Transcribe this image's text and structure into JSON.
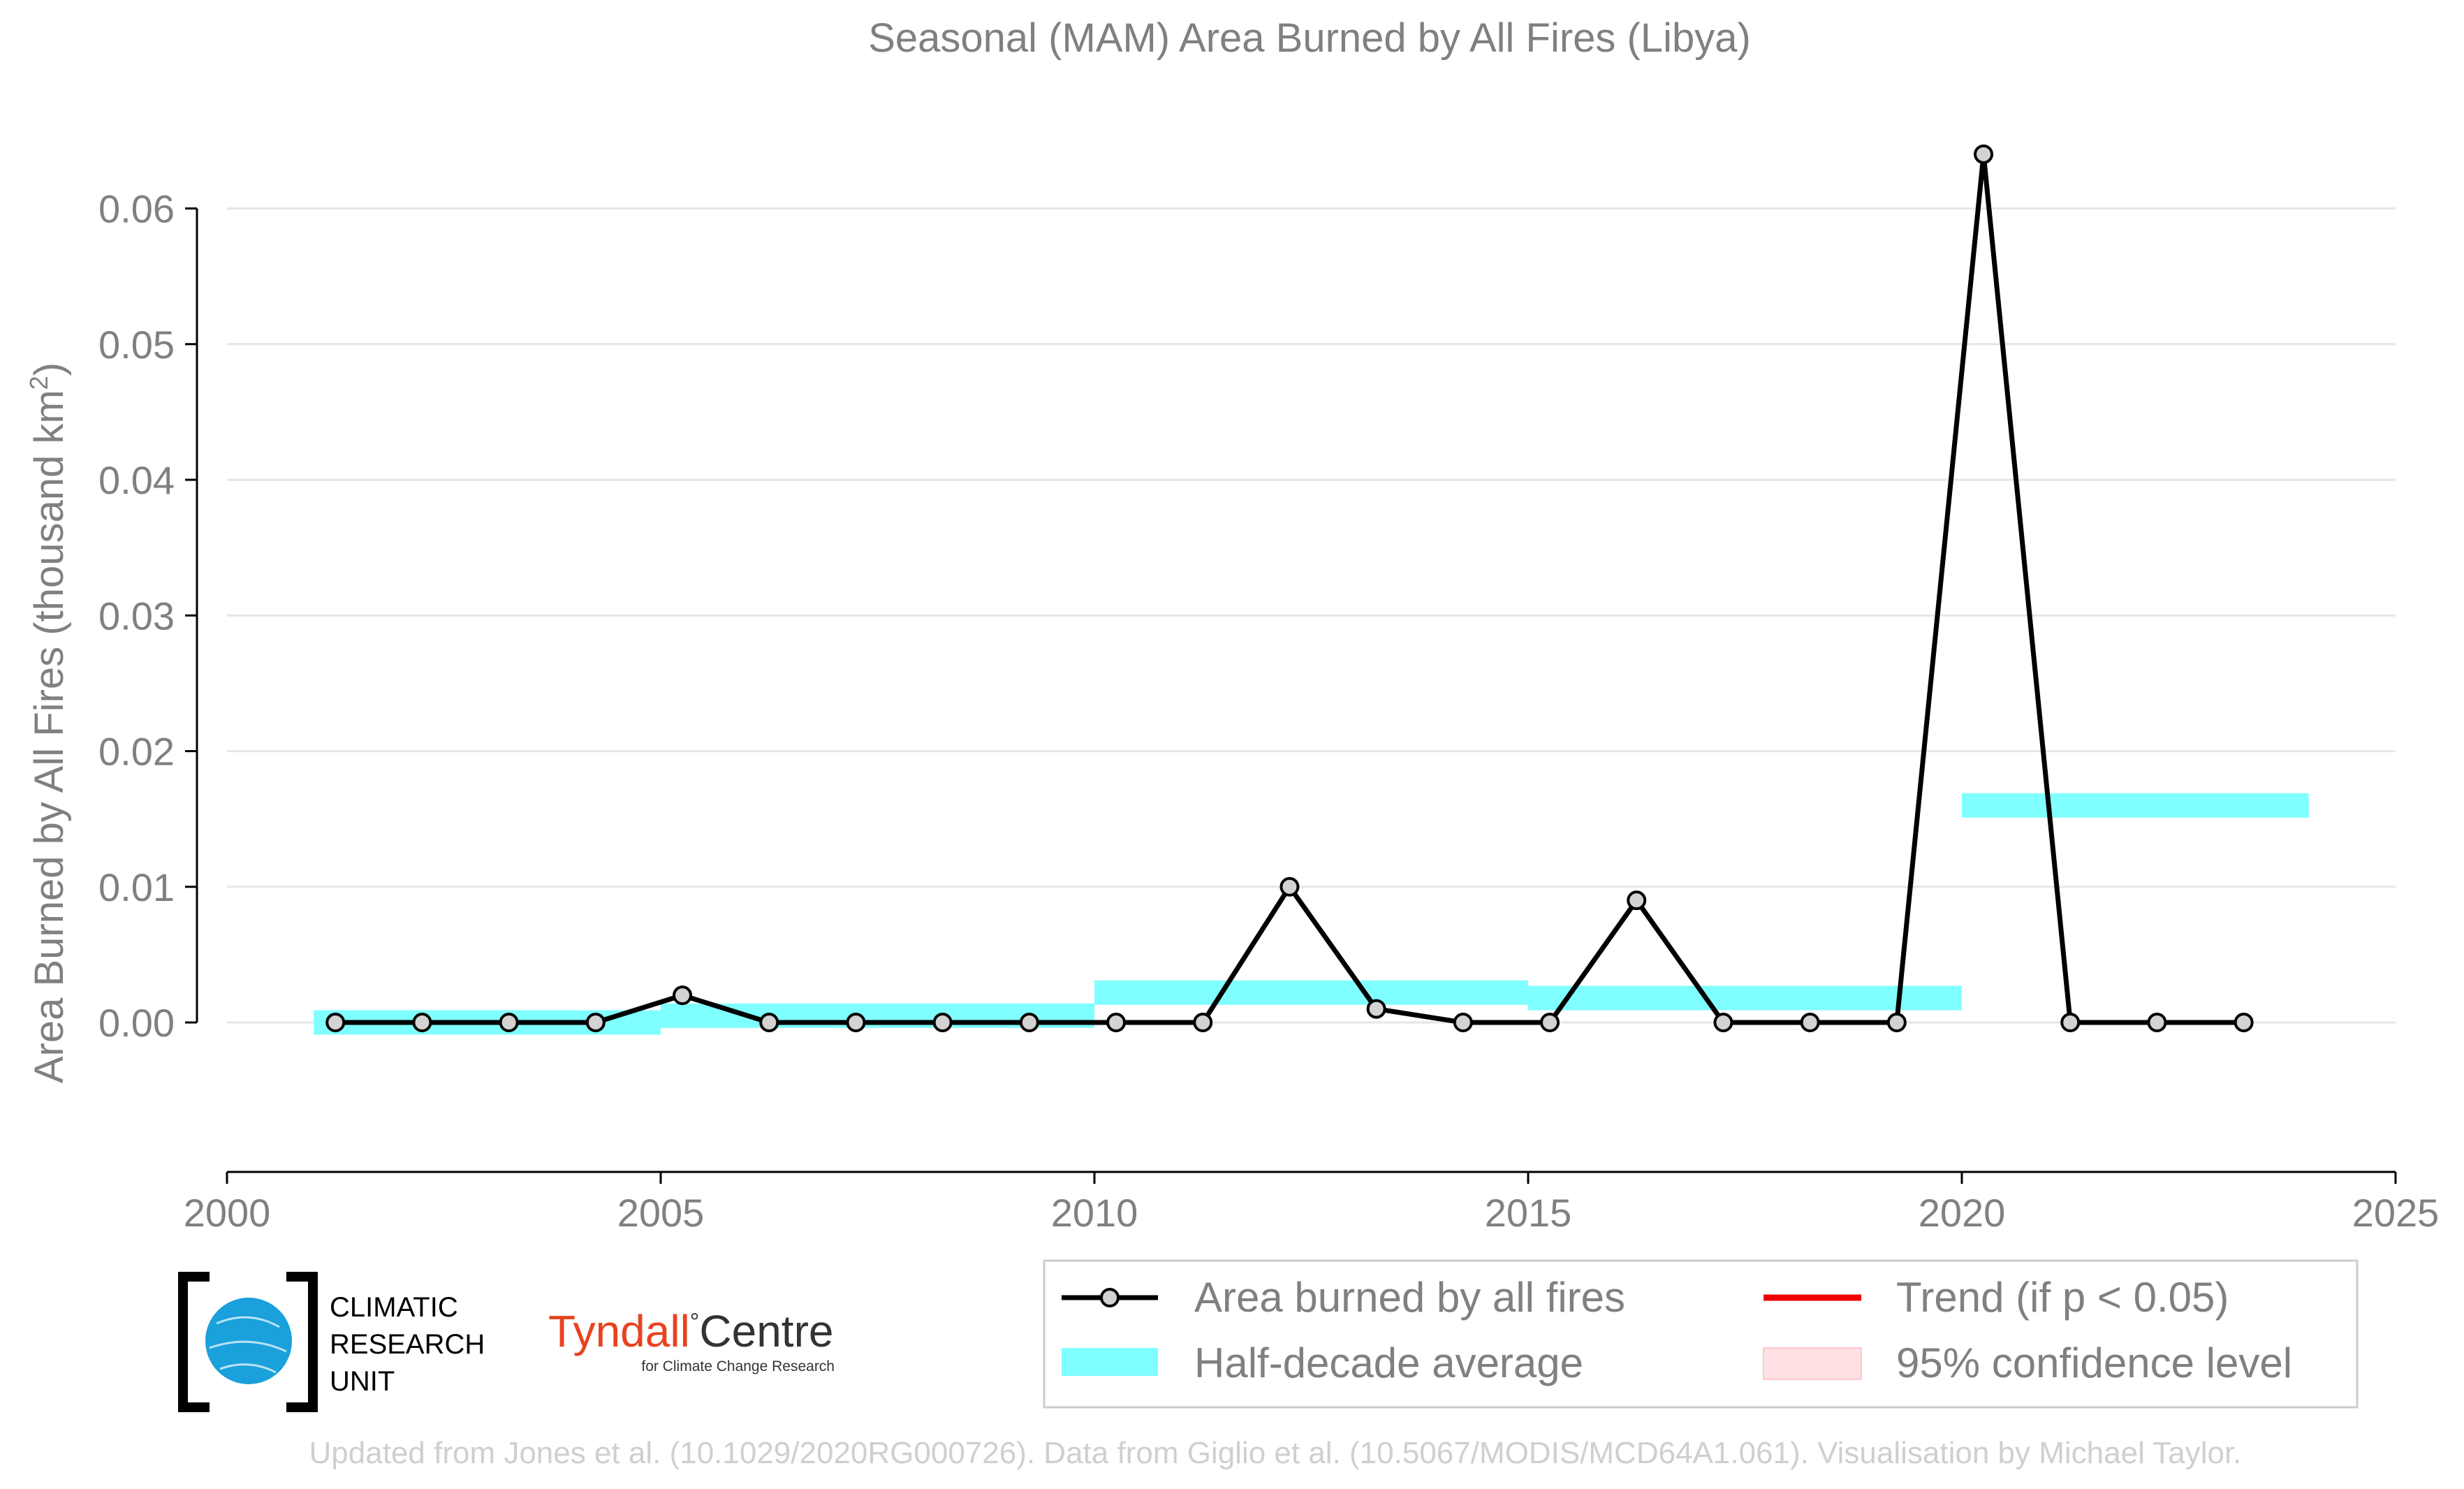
{
  "chart_data": {
    "type": "line",
    "title": "Seasonal (MAM) Area Burned by All Fires (Libya)",
    "ylabel_main": "Area Burned by All Fires (thousand km",
    "ylabel_sup": "2",
    "ylabel_close": ")",
    "xlabel": "",
    "xlim": [
      2000,
      2025
    ],
    "ylim": [
      -0.0052,
      0.0625
    ],
    "x_ticks": [
      2000,
      2005,
      2010,
      2015,
      2020,
      2025
    ],
    "x_tick_labels": [
      "2000",
      "2005",
      "2010",
      "2015",
      "2020",
      "2025"
    ],
    "y_ticks": [
      0.0,
      0.01,
      0.02,
      0.03,
      0.04,
      0.05,
      0.06
    ],
    "y_tick_labels": [
      "0.00",
      "0.01",
      "0.02",
      "0.03",
      "0.04",
      "0.05",
      "0.06"
    ],
    "grid": "horizontal",
    "legend_position": "bottom-right, below plot",
    "series": [
      {
        "name": "Area burned by all fires",
        "x": [
          2001.25,
          2002.25,
          2003.25,
          2004.25,
          2005.25,
          2006.25,
          2007.25,
          2008.25,
          2009.25,
          2010.25,
          2011.25,
          2012.25,
          2013.25,
          2014.25,
          2015.25,
          2016.25,
          2017.25,
          2018.25,
          2019.25,
          2020.25,
          2021.25,
          2022.25,
          2023.25
        ],
        "values": [
          0.0,
          0.0,
          0.0,
          0.0,
          0.002,
          0.0,
          0.0,
          0.0,
          0.0,
          0.0,
          0.0,
          0.01,
          0.001,
          0.0,
          0.0,
          0.009,
          0.0,
          0.0,
          0.0,
          0.064,
          0.0,
          0.0,
          0.0
        ],
        "color": "#000000"
      },
      {
        "name": "Half-decade average",
        "type": "band",
        "color": "#7fffff",
        "segments": [
          {
            "x0": 2001,
            "x1": 2005,
            "y": 0.0,
            "half_height": 0.0009
          },
          {
            "x0": 2005,
            "x1": 2010,
            "y": 0.0005,
            "half_height": 0.0009
          },
          {
            "x0": 2010,
            "x1": 2015,
            "y": 0.0022,
            "half_height": 0.0009
          },
          {
            "x0": 2015,
            "x1": 2020,
            "y": 0.0018,
            "half_height": 0.0009
          },
          {
            "x0": 2020,
            "x1": 2024,
            "y": 0.016,
            "half_height": 0.0009
          }
        ]
      }
    ],
    "legend": [
      {
        "label": "Area burned by all fires",
        "kind": "line-marker",
        "color": "#000000"
      },
      {
        "label": "Trend (if p < 0.05)",
        "kind": "line",
        "color": "#ee0000"
      },
      {
        "label": "Half-decade average",
        "kind": "band",
        "color": "#7fffff"
      },
      {
        "label": "95% confidence level",
        "kind": "band",
        "color": "#ffe0e3"
      }
    ]
  },
  "logos": {
    "cru_line1": "CLIMATIC",
    "cru_line2": "RESEARCH",
    "cru_line3": "UNIT",
    "tyndall_word": "Tyndall",
    "tyndall_degree": "°",
    "tyndall_centre": "Centre",
    "tyndall_sub": "for Climate Change Research"
  },
  "footer": "Updated from Jones et al. (10.1029/2020RG000726). Data from Giglio et al. (10.5067/MODIS/MCD64A1.061). Visualisation by Michael Taylor."
}
